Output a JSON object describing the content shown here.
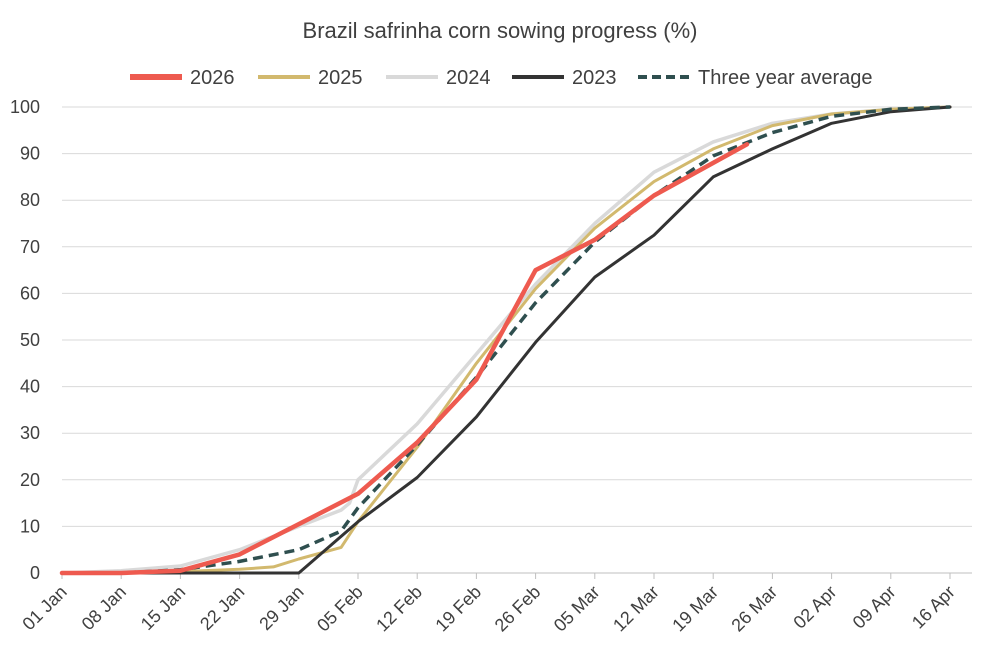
{
  "chart_data": {
    "type": "line",
    "title": "Brazil safrinha corn sowing progress (%)",
    "xlabel": "",
    "ylabel": "",
    "ylim": [
      0,
      100
    ],
    "yticks": [
      0,
      10,
      20,
      30,
      40,
      50,
      60,
      70,
      80,
      90,
      100
    ],
    "x_range": [
      "01 Jan",
      "16 Apr"
    ],
    "x_ticks": [
      "01 Jan",
      "08 Jan",
      "15 Jan",
      "22 Jan",
      "29 Jan",
      "05 Feb",
      "12 Feb",
      "19 Feb",
      "26 Feb",
      "05 Mar",
      "12 Mar",
      "19 Mar",
      "26 Mar",
      "02 Apr",
      "09 Apr",
      "16 Apr"
    ],
    "grid": "horizontal",
    "legend_position": "top",
    "series": [
      {
        "name": "2024",
        "color": "#d9d9d9",
        "style": "solid",
        "points": [
          [
            "01 Jan",
            0
          ],
          [
            "08 Jan",
            0.5
          ],
          [
            "15 Jan",
            1.5
          ],
          [
            "22 Jan",
            5
          ],
          [
            "29 Jan",
            10
          ],
          [
            "03 Feb",
            13.5
          ],
          [
            "04 Feb",
            15
          ],
          [
            "05 Feb",
            20
          ],
          [
            "12 Feb",
            32
          ],
          [
            "19 Feb",
            47
          ],
          [
            "26 Feb",
            62
          ],
          [
            "05 Mar",
            75
          ],
          [
            "12 Mar",
            86
          ],
          [
            "19 Mar",
            92.5
          ],
          [
            "26 Mar",
            96.5
          ],
          [
            "02 Apr",
            98.5
          ],
          [
            "09 Apr",
            99.5
          ],
          [
            "16 Apr",
            100
          ]
        ]
      },
      {
        "name": "2025",
        "color": "#d2b96e",
        "style": "solid",
        "points": [
          [
            "01 Jan",
            0
          ],
          [
            "08 Jan",
            0
          ],
          [
            "15 Jan",
            0.3
          ],
          [
            "22 Jan",
            0.8
          ],
          [
            "26 Jan",
            1.3
          ],
          [
            "29 Jan",
            3
          ],
          [
            "03 Feb",
            5.5
          ],
          [
            "05 Feb",
            11
          ],
          [
            "12 Feb",
            27
          ],
          [
            "19 Feb",
            45
          ],
          [
            "26 Feb",
            61
          ],
          [
            "05 Mar",
            74
          ],
          [
            "12 Mar",
            84
          ],
          [
            "19 Mar",
            91
          ],
          [
            "26 Mar",
            96
          ],
          [
            "02 Apr",
            98.5
          ],
          [
            "09 Apr",
            99.5
          ],
          [
            "16 Apr",
            100
          ]
        ]
      },
      {
        "name": "2023",
        "color": "#333333",
        "style": "solid",
        "points": [
          [
            "01 Jan",
            0
          ],
          [
            "08 Jan",
            0
          ],
          [
            "15 Jan",
            0
          ],
          [
            "22 Jan",
            0
          ],
          [
            "29 Jan",
            0
          ],
          [
            "05 Feb",
            11
          ],
          [
            "12 Feb",
            20.5
          ],
          [
            "19 Feb",
            33.5
          ],
          [
            "26 Feb",
            49.5
          ],
          [
            "05 Mar",
            63.5
          ],
          [
            "12 Mar",
            72.5
          ],
          [
            "19 Mar",
            85
          ],
          [
            "26 Mar",
            91
          ],
          [
            "02 Apr",
            96.5
          ],
          [
            "09 Apr",
            99
          ],
          [
            "16 Apr",
            100
          ]
        ]
      },
      {
        "name": "Three year average",
        "color": "#2f4f4f",
        "style": "dashed",
        "points": [
          [
            "01 Jan",
            0
          ],
          [
            "08 Jan",
            0
          ],
          [
            "15 Jan",
            0.7
          ],
          [
            "22 Jan",
            2.5
          ],
          [
            "29 Jan",
            5
          ],
          [
            "03 Feb",
            9
          ],
          [
            "05 Feb",
            14
          ],
          [
            "12 Feb",
            27.5
          ],
          [
            "19 Feb",
            42
          ],
          [
            "26 Feb",
            58
          ],
          [
            "05 Mar",
            71
          ],
          [
            "12 Mar",
            81
          ],
          [
            "19 Mar",
            89.5
          ],
          [
            "26 Mar",
            94.5
          ],
          [
            "02 Apr",
            98
          ],
          [
            "09 Apr",
            99.5
          ],
          [
            "16 Apr",
            100
          ]
        ]
      },
      {
        "name": "2026",
        "color": "#ee5a4f",
        "style": "solid",
        "points": [
          [
            "01 Jan",
            0
          ],
          [
            "08 Jan",
            0
          ],
          [
            "15 Jan",
            0.5
          ],
          [
            "22 Jan",
            4
          ],
          [
            "29 Jan",
            10.5
          ],
          [
            "05 Feb",
            17
          ],
          [
            "12 Feb",
            28
          ],
          [
            "19 Feb",
            41.5
          ],
          [
            "26 Feb",
            65
          ],
          [
            "05 Mar",
            71.5
          ],
          [
            "12 Mar",
            81
          ],
          [
            "19 Mar",
            88
          ],
          [
            "23 Mar",
            92
          ]
        ]
      }
    ],
    "legend_order": [
      "2026",
      "2025",
      "2024",
      "2023",
      "Three year average"
    ]
  }
}
